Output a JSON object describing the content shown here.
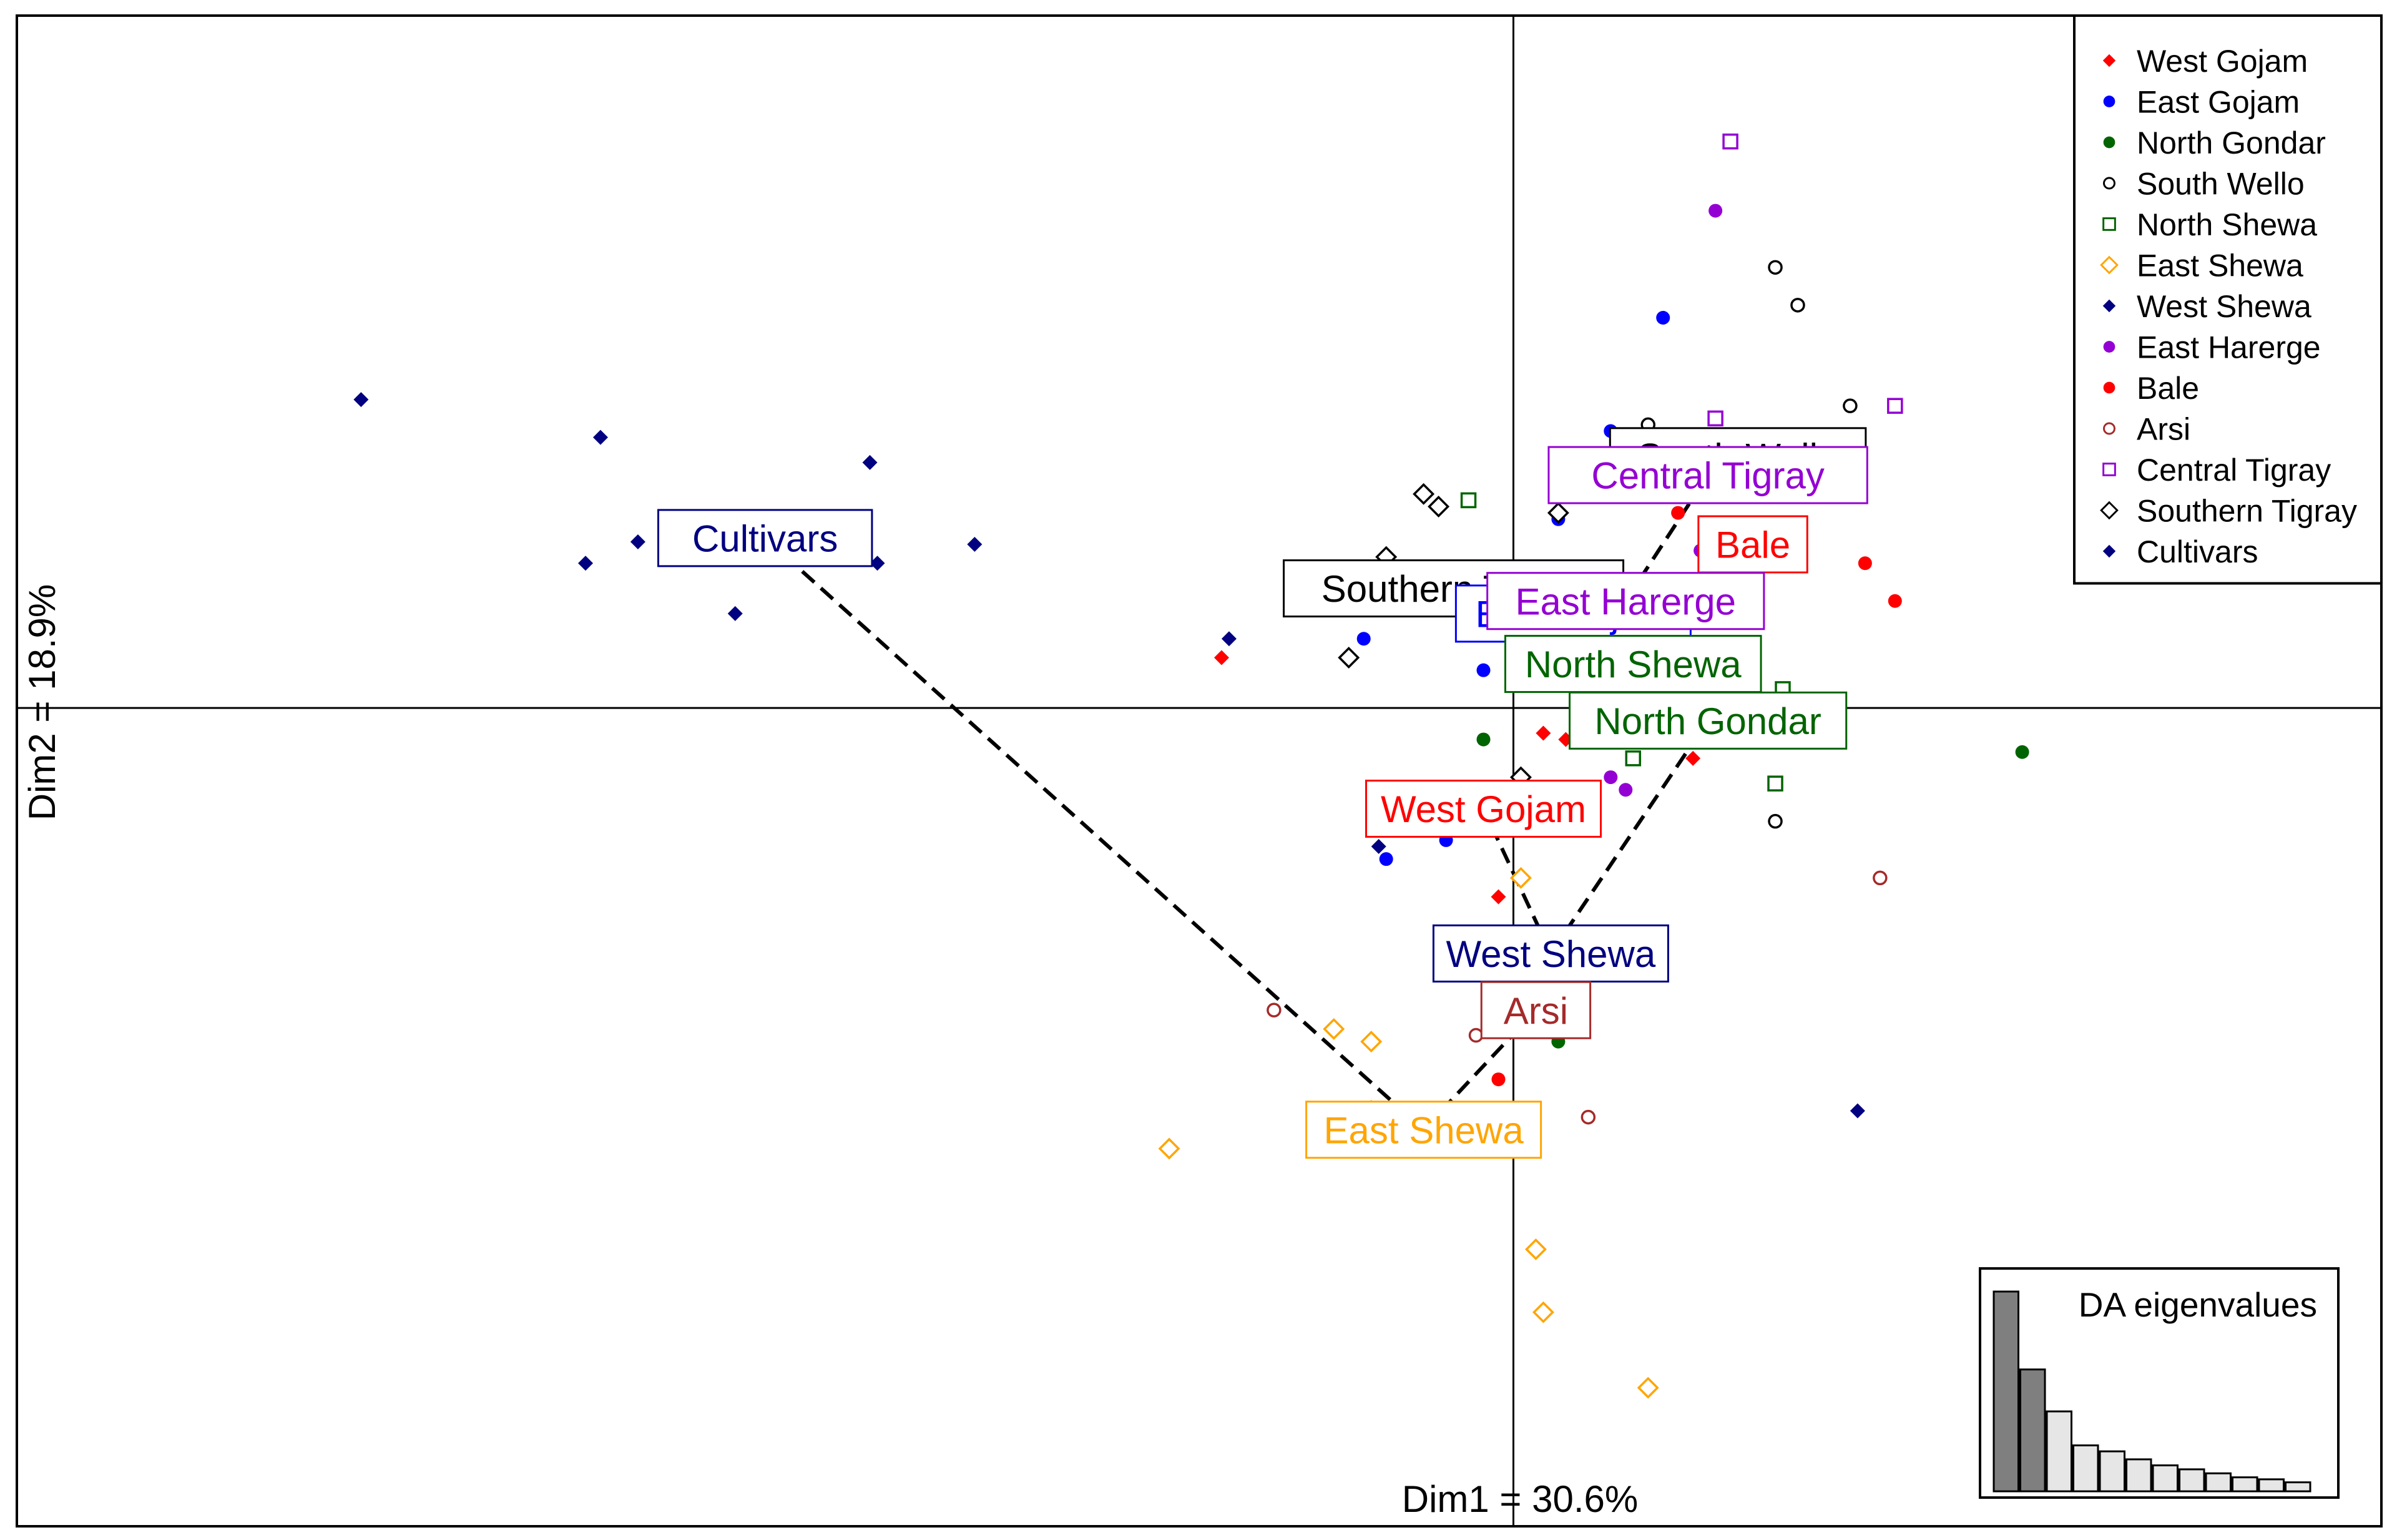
{
  "chart_data": {
    "type": "scatter",
    "title": "",
    "xlabel": "Dim1 = 30.6%",
    "ylabel": "Dim2 = 18.9%",
    "xlim": [
      -10,
      5.8
    ],
    "ylim": [
      -6.5,
      5.5
    ],
    "grid": false,
    "legend_position": "top-right",
    "groups": [
      {
        "name": "West Gojam",
        "color": "#ff0000",
        "marker": "diamond-filled",
        "centroid": [
          -0.2,
          -0.8
        ],
        "points": [
          [
            -1.95,
            0.4
          ],
          [
            0.2,
            -0.2
          ],
          [
            1.2,
            -0.4
          ],
          [
            0.35,
            -0.25
          ],
          [
            -0.1,
            -1.5
          ],
          [
            0.2,
            -0.9
          ],
          [
            1.5,
            2.0
          ]
        ]
      },
      {
        "name": "East Gojam",
        "color": "#0000ff",
        "marker": "circle-filled",
        "centroid": [
          0.4,
          0.75
        ],
        "points": [
          [
            1.0,
            3.1
          ],
          [
            0.65,
            2.2
          ],
          [
            -1.0,
            0.55
          ],
          [
            -0.2,
            0.3
          ],
          [
            -0.85,
            -1.2
          ],
          [
            -0.45,
            -1.05
          ],
          [
            0.3,
            1.5
          ]
        ]
      },
      {
        "name": "North Gondar",
        "color": "#006400",
        "marker": "circle-filled",
        "centroid": [
          1.3,
          -0.1
        ],
        "points": [
          [
            -0.2,
            -0.25
          ],
          [
            3.4,
            -0.35
          ],
          [
            0.3,
            -2.65
          ],
          [
            1.15,
            2.15
          ]
        ]
      },
      {
        "name": "South Wello",
        "color": "#000000",
        "marker": "circle-open",
        "centroid": [
          1.5,
          2.0
        ],
        "points": [
          [
            1.75,
            3.5
          ],
          [
            1.9,
            3.2
          ],
          [
            2.25,
            2.4
          ],
          [
            1.75,
            -0.9
          ],
          [
            0.9,
            2.25
          ],
          [
            0.8,
            0.45
          ]
        ]
      },
      {
        "name": "North Shewa",
        "color": "#006400",
        "marker": "square-open",
        "centroid": [
          0.8,
          0.35
        ],
        "points": [
          [
            -0.3,
            1.65
          ],
          [
            0.8,
            -0.4
          ],
          [
            1.75,
            -0.6
          ],
          [
            1.8,
            0.15
          ],
          [
            1.15,
            2.15
          ],
          [
            0.9,
            0.05
          ]
        ]
      },
      {
        "name": "East Shewa",
        "color": "#ffa500",
        "marker": "diamond-open",
        "centroid": [
          -0.6,
          -3.35
        ],
        "points": [
          [
            -2.3,
            -3.5
          ],
          [
            -1.2,
            -2.55
          ],
          [
            -0.95,
            -2.65
          ],
          [
            -0.95,
            -3.2
          ],
          [
            0.15,
            -4.3
          ],
          [
            0.2,
            -4.8
          ],
          [
            0.9,
            -5.4
          ],
          [
            0.05,
            -1.35
          ],
          [
            -0.6,
            -3.35
          ]
        ]
      },
      {
        "name": "West Shewa",
        "color": "#000080",
        "marker": "diamond-filled",
        "centroid": [
          0.25,
          -1.95
        ],
        "points": [
          [
            2.3,
            -3.2
          ],
          [
            -0.9,
            -1.1
          ],
          [
            -1.9,
            0.55
          ],
          [
            -0.7,
            0.8
          ]
        ]
      },
      {
        "name": "East Harerge",
        "color": "#9400d3",
        "marker": "circle-filled",
        "centroid": [
          0.75,
          0.85
        ],
        "points": [
          [
            1.35,
            3.95
          ],
          [
            1.25,
            1.25
          ],
          [
            0.75,
            -0.65
          ],
          [
            0.35,
            1.8
          ],
          [
            0.65,
            -0.55
          ]
        ]
      },
      {
        "name": "Bale",
        "color": "#ff0000",
        "marker": "circle-filled",
        "centroid": [
          1.6,
          1.3
        ],
        "points": [
          [
            2.35,
            1.15
          ],
          [
            2.55,
            0.85
          ],
          [
            1.1,
            1.55
          ],
          [
            -0.1,
            -2.95
          ]
        ]
      },
      {
        "name": "Arsi",
        "color": "#a52a2a",
        "marker": "circle-open",
        "centroid": [
          0.15,
          -2.4
        ],
        "points": [
          [
            -1.6,
            -2.4
          ],
          [
            0.5,
            -3.25
          ],
          [
            2.45,
            -1.35
          ],
          [
            -0.25,
            -2.6
          ]
        ]
      },
      {
        "name": "Central Tigray",
        "color": "#9400d3",
        "marker": "square-open",
        "centroid": [
          1.3,
          1.85
        ],
        "points": [
          [
            1.45,
            4.5
          ],
          [
            2.55,
            2.4
          ],
          [
            1.35,
            2.3
          ]
        ]
      },
      {
        "name": "Southern Tigray",
        "color": "#000000",
        "marker": "diamond-open",
        "centroid": [
          -0.4,
          0.95
        ],
        "points": [
          [
            -0.6,
            1.7
          ],
          [
            -0.5,
            1.6
          ],
          [
            -1.1,
            0.4
          ],
          [
            0.3,
            1.55
          ],
          [
            -0.85,
            1.2
          ],
          [
            0.05,
            -0.55
          ]
        ]
      },
      {
        "name": "Cultivars",
        "color": "#000080",
        "marker": "diamond-filled",
        "centroid": [
          -5.0,
          1.35
        ],
        "points": [
          [
            -7.7,
            2.45
          ],
          [
            -6.1,
            2.15
          ],
          [
            -4.3,
            1.95
          ],
          [
            -5.85,
            1.32
          ],
          [
            -6.2,
            1.15
          ],
          [
            -4.25,
            1.15
          ],
          [
            -3.6,
            1.3
          ],
          [
            -5.2,
            0.75
          ],
          [
            -4.9,
            1.35
          ]
        ]
      }
    ],
    "labels": [
      {
        "text": "South Wello",
        "group": "South Wello"
      },
      {
        "text": "Central Tigray",
        "group": "Central Tigray"
      },
      {
        "text": "Bale",
        "group": "Bale"
      },
      {
        "text": "Southern Tigray",
        "group": "Southern Tigray"
      },
      {
        "text": "East Gojam",
        "group": "East Gojam"
      },
      {
        "text": "East Harerge",
        "group": "East Harerge"
      },
      {
        "text": "North Shewa",
        "group": "North Shewa"
      },
      {
        "text": "North Gondar",
        "group": "North Gondar"
      },
      {
        "text": "West Gojam",
        "group": "West Gojam"
      },
      {
        "text": "West Shewa",
        "group": "West Shewa"
      },
      {
        "text": "Arsi",
        "group": "Arsi"
      },
      {
        "text": "East Shewa",
        "group": "East Shewa"
      },
      {
        "text": "Cultivars",
        "group": "Cultivars"
      }
    ],
    "minimum_spanning_tree": [
      [
        "Cultivars",
        "East Shewa"
      ],
      [
        "East Shewa",
        "Arsi"
      ],
      [
        "Arsi",
        "West Shewa"
      ],
      [
        "West Shewa",
        "West Gojam"
      ],
      [
        "West Shewa",
        "North Gondar"
      ],
      [
        "North Gondar",
        "North Shewa"
      ],
      [
        "North Shewa",
        "East Harerge"
      ],
      [
        "East Harerge",
        "Central Tigray"
      ],
      [
        "Central Tigray",
        "South Wello"
      ],
      [
        "North Shewa",
        "Bale"
      ],
      [
        "North Shewa",
        "Southern Tigray"
      ],
      [
        "Southern Tigray",
        "East Gojam"
      ]
    ],
    "eigenvalues_inset": {
      "title": "DA eigenvalues",
      "values": [
        100,
        61,
        40,
        23,
        20,
        16,
        13,
        11,
        9,
        7,
        6,
        4.5
      ],
      "retained": 2
    }
  }
}
